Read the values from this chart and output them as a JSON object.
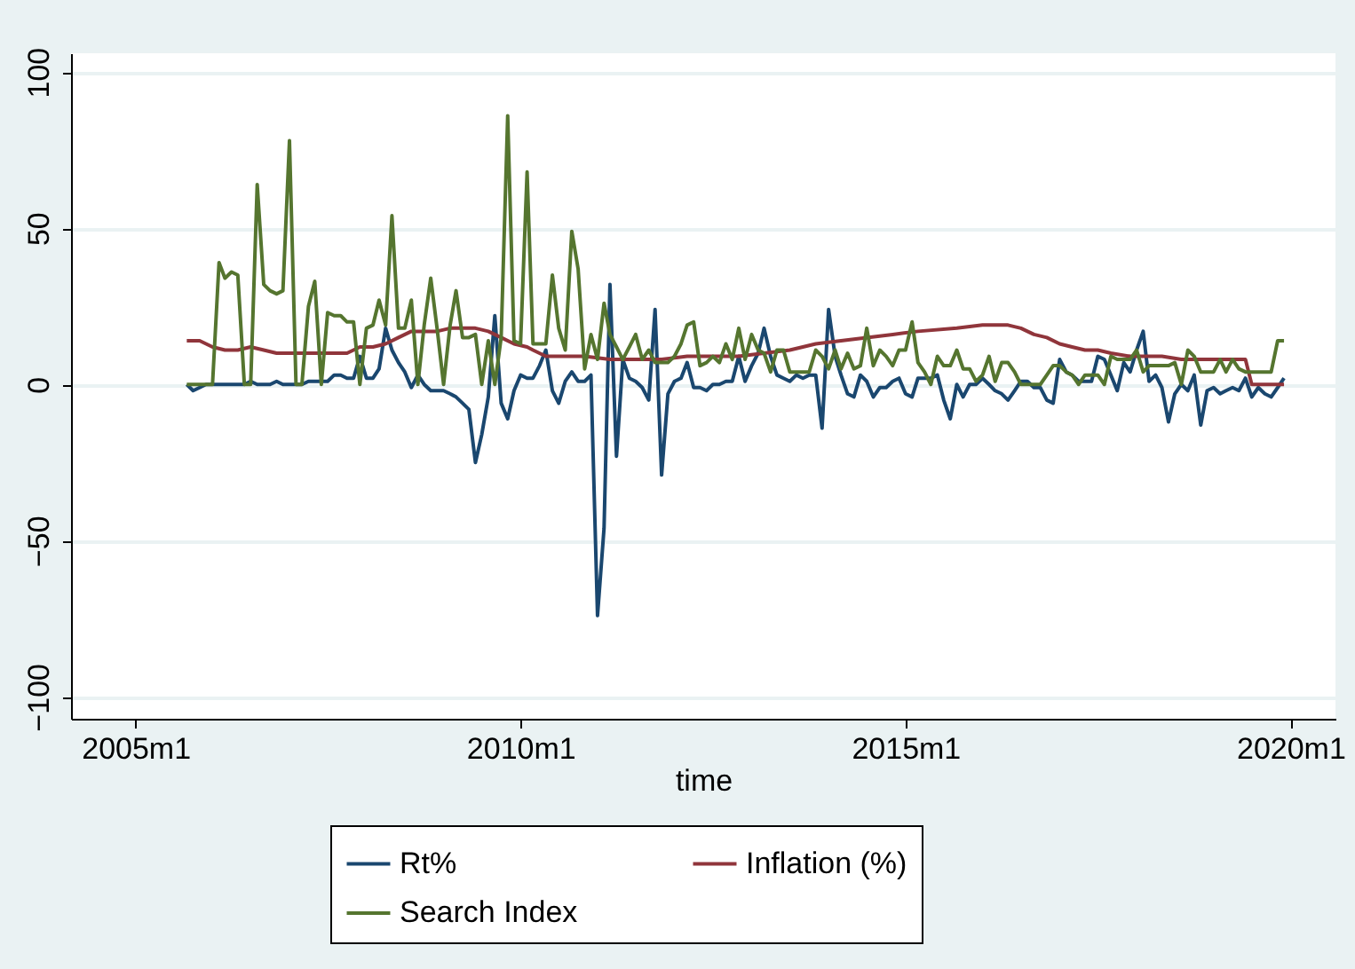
{
  "chart_data": {
    "type": "line",
    "xlabel": "time",
    "x": [
      "2005-09",
      "2005-10",
      "2005-11",
      "2005-12",
      "2006-01",
      "2006-02",
      "2006-03",
      "2006-04",
      "2006-05",
      "2006-06",
      "2006-07",
      "2006-08",
      "2006-09",
      "2006-10",
      "2006-11",
      "2006-12",
      "2007-01",
      "2007-02",
      "2007-03",
      "2007-04",
      "2007-05",
      "2007-06",
      "2007-07",
      "2007-08",
      "2007-09",
      "2007-10",
      "2007-11",
      "2007-12",
      "2008-01",
      "2008-02",
      "2008-03",
      "2008-04",
      "2008-05",
      "2008-06",
      "2008-07",
      "2008-08",
      "2008-09",
      "2008-10",
      "2008-11",
      "2008-12",
      "2009-01",
      "2009-02",
      "2009-03",
      "2009-04",
      "2009-05",
      "2009-06",
      "2009-07",
      "2009-08",
      "2009-09",
      "2009-10",
      "2009-11",
      "2009-12",
      "2010-01",
      "2010-02",
      "2010-03",
      "2010-04",
      "2010-05",
      "2010-06",
      "2010-07",
      "2010-08",
      "2010-09",
      "2010-10",
      "2010-11",
      "2010-12",
      "2011-01",
      "2011-02",
      "2011-03",
      "2011-04",
      "2011-05",
      "2011-06",
      "2011-07",
      "2011-08",
      "2011-09",
      "2011-10",
      "2011-11",
      "2011-12",
      "2012-01",
      "2012-02",
      "2012-03",
      "2012-04",
      "2012-05",
      "2012-06",
      "2012-07",
      "2012-08",
      "2012-09",
      "2012-10",
      "2012-11",
      "2012-12",
      "2013-01",
      "2013-02",
      "2013-03",
      "2013-04",
      "2013-05",
      "2013-06",
      "2013-07",
      "2013-08",
      "2013-09",
      "2013-10",
      "2013-11",
      "2013-12",
      "2014-01",
      "2014-02",
      "2014-03",
      "2014-04",
      "2014-05",
      "2014-06",
      "2014-07",
      "2014-08",
      "2014-09",
      "2014-10",
      "2014-11",
      "2014-12",
      "2015-01",
      "2015-02",
      "2015-03",
      "2015-04",
      "2015-05",
      "2015-06",
      "2015-07",
      "2015-08",
      "2015-09",
      "2015-10",
      "2015-11",
      "2015-12",
      "2016-01",
      "2016-02",
      "2016-03",
      "2016-04",
      "2016-05",
      "2016-06",
      "2016-07",
      "2016-08",
      "2016-09",
      "2016-10",
      "2016-11",
      "2016-12",
      "2017-01",
      "2017-02",
      "2017-03",
      "2017-04",
      "2017-05",
      "2017-06",
      "2017-07",
      "2017-08",
      "2017-09",
      "2017-10",
      "2017-11",
      "2017-12",
      "2018-01",
      "2018-02",
      "2018-03",
      "2018-04",
      "2018-05",
      "2018-06",
      "2018-07",
      "2018-08",
      "2018-09",
      "2018-10",
      "2018-11",
      "2018-12",
      "2019-01",
      "2019-02",
      "2019-03",
      "2019-04",
      "2019-05",
      "2019-06",
      "2019-07",
      "2019-08",
      "2019-09",
      "2019-10",
      "2019-11",
      "2019-12"
    ],
    "series": [
      {
        "name": "Rt%",
        "color": "#1a476f",
        "values": [
          0,
          -2,
          -1,
          0,
          0,
          0,
          0,
          0,
          0,
          0,
          1,
          0,
          0,
          0,
          1,
          0,
          0,
          0,
          0,
          1,
          1,
          1,
          1,
          3,
          3,
          2,
          2,
          9,
          2,
          2,
          5,
          18,
          11,
          7,
          4,
          -1,
          3,
          0,
          -2,
          -2,
          -2,
          -3,
          -4,
          -6,
          -8,
          -25,
          -16,
          -4,
          22,
          -6,
          -11,
          -2,
          3,
          2,
          2,
          6,
          11,
          -2,
          -6,
          1,
          4,
          1,
          1,
          3,
          -74,
          -46,
          32,
          -23,
          8,
          2,
          1,
          -1,
          -5,
          24,
          -29,
          -3,
          1,
          2,
          7,
          -1,
          -1,
          -2,
          0,
          0,
          1,
          1,
          9,
          1,
          6,
          10,
          18,
          9,
          3,
          2,
          1,
          3,
          2,
          3,
          3,
          -14,
          24,
          9,
          3,
          -3,
          -4,
          3,
          1,
          -4,
          -1,
          -1,
          1,
          2,
          -3,
          -4,
          2,
          2,
          2,
          3,
          -5,
          -11,
          0,
          -4,
          0,
          0,
          2,
          0,
          -2,
          -3,
          -5,
          -2,
          1,
          1,
          -1,
          -1,
          -5,
          -6,
          8,
          4,
          3,
          1,
          1,
          1,
          9,
          8,
          3,
          -2,
          7,
          4,
          11,
          17,
          1,
          3,
          -1,
          -12,
          -3,
          0,
          -2,
          3,
          -13,
          -2,
          -1,
          -3,
          -2,
          -1,
          -2,
          2,
          -4,
          -1,
          -3,
          -4,
          -1,
          2
        ]
      },
      {
        "name": "Inflation (%)",
        "color": "#90353b",
        "x": [
          "2005-09",
          "2005-11",
          "2006-01",
          "2006-03",
          "2006-05",
          "2006-07",
          "2006-09",
          "2006-11",
          "2007-03",
          "2007-10",
          "2007-12",
          "2008-02",
          "2008-04",
          "2008-06",
          "2008-08",
          "2008-10",
          "2008-12",
          "2009-02",
          "2009-06",
          "2009-08",
          "2009-10",
          "2009-12",
          "2010-02",
          "2010-03",
          "2010-05",
          "2010-11",
          "2011-03",
          "2011-11",
          "2012-03",
          "2012-11",
          "2013-03",
          "2013-07",
          "2013-09",
          "2013-11",
          "2014-03",
          "2014-07",
          "2014-11",
          "2015-03",
          "2015-09",
          "2016-01",
          "2016-05",
          "2016-07",
          "2016-09",
          "2016-11",
          "2017-01",
          "2017-03",
          "2017-05",
          "2017-07",
          "2017-09",
          "2017-12",
          "2018-05",
          "2018-08",
          "2019-06",
          "2019-07",
          "2019-12"
        ],
        "values": [
          14,
          14,
          12,
          11,
          11,
          12,
          11,
          10,
          10,
          10,
          12,
          12,
          13,
          15,
          17,
          17,
          17,
          18,
          18,
          17,
          15,
          13,
          12,
          11,
          9,
          9,
          8,
          8,
          9,
          9,
          10,
          11,
          12,
          13,
          14,
          15,
          16,
          17,
          18,
          19,
          19,
          18,
          16,
          15,
          13,
          12,
          11,
          11,
          10,
          9,
          9,
          8,
          8,
          0,
          0
        ]
      },
      {
        "name": "Search Index",
        "color": "#55752f",
        "values": [
          0,
          0,
          0,
          0,
          0,
          39,
          34,
          36,
          35,
          0,
          0,
          64,
          32,
          30,
          29,
          30,
          78,
          0,
          0,
          25,
          33,
          0,
          23,
          22,
          22,
          20,
          20,
          0,
          18,
          19,
          27,
          19,
          54,
          18,
          18,
          27,
          0,
          19,
          34,
          18,
          0,
          19,
          30,
          15,
          15,
          16,
          0,
          14,
          0,
          15,
          86,
          14,
          13,
          68,
          13,
          13,
          13,
          35,
          18,
          11,
          49,
          37,
          5,
          16,
          8,
          26,
          16,
          12,
          8,
          12,
          16,
          8,
          11,
          7,
          7,
          7,
          9,
          13,
          19,
          20,
          6,
          7,
          9,
          7,
          13,
          8,
          18,
          8,
          16,
          11,
          10,
          4,
          11,
          11,
          4,
          4,
          4,
          4,
          11,
          9,
          5,
          11,
          5,
          10,
          5,
          6,
          18,
          6,
          11,
          9,
          6,
          11,
          11,
          20,
          7,
          4,
          0,
          9,
          6,
          6,
          11,
          5,
          5,
          1,
          3,
          9,
          1,
          7,
          7,
          4,
          0,
          0,
          0,
          0,
          3,
          6,
          6,
          4,
          3,
          0,
          3,
          3,
          3,
          0,
          9,
          8,
          8,
          8,
          11,
          4,
          6,
          6,
          6,
          6,
          7,
          0,
          11,
          9,
          4,
          4,
          4,
          8,
          4,
          8,
          5,
          4,
          4,
          4,
          4,
          4,
          14,
          14
        ]
      }
    ],
    "xlim": [
      "2004-03",
      "2020-08"
    ],
    "xticks": [
      {
        "value": "2005-01",
        "label": "2005m1"
      },
      {
        "value": "2010-01",
        "label": "2010m1"
      },
      {
        "value": "2015-01",
        "label": "2015m1"
      },
      {
        "value": "2020-01",
        "label": "2020m1"
      }
    ],
    "ylim": [
      -107,
      106
    ],
    "yticks": [
      -100,
      -50,
      0,
      50,
      100
    ],
    "grid": "y",
    "legend": "bottom",
    "line_style": "solid"
  }
}
